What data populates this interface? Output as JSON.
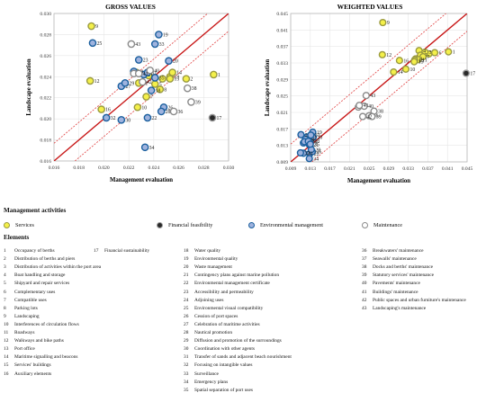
{
  "chart_data": [
    {
      "type": "scatter",
      "title": "GROSS VALUES",
      "xlabel": "Management evaluation",
      "ylabel": "Landscape evaluation",
      "xlim": [
        0.016,
        0.03
      ],
      "ylim": [
        0.016,
        0.03
      ],
      "xticks": [
        "0.016",
        "0.018",
        "0.020",
        "0.022",
        "0.024",
        "0.026",
        "0.028",
        "0.030"
      ],
      "yticks": [
        "0.016",
        "0.018",
        "0.020",
        "0.022",
        "0.024",
        "0.026",
        "0.028",
        "0.030"
      ],
      "grid": true,
      "reference_lines": [
        "y = x",
        "upper confidence band",
        "lower confidence band"
      ],
      "points": [
        {
          "id": "1",
          "x": 0.0288,
          "y": 0.0242,
          "cat": "services"
        },
        {
          "id": "2",
          "x": 0.0266,
          "y": 0.0238,
          "cat": "services"
        },
        {
          "id": "3",
          "x": 0.0247,
          "y": 0.0238,
          "cat": "services"
        },
        {
          "id": "4",
          "x": 0.0226,
          "y": 0.0244,
          "cat": "services"
        },
        {
          "id": "5",
          "x": 0.0241,
          "y": 0.0233,
          "cat": "services"
        },
        {
          "id": "6",
          "x": 0.0236,
          "y": 0.0241,
          "cat": "services"
        },
        {
          "id": "7",
          "x": 0.0234,
          "y": 0.0221,
          "cat": "services"
        },
        {
          "id": "8",
          "x": 0.0245,
          "y": 0.0228,
          "cat": "services"
        },
        {
          "id": "9",
          "x": 0.019,
          "y": 0.0288,
          "cat": "services"
        },
        {
          "id": "10",
          "x": 0.0227,
          "y": 0.0211,
          "cat": "services"
        },
        {
          "id": "11",
          "x": 0.0228,
          "y": 0.0234,
          "cat": "services"
        },
        {
          "id": "12",
          "x": 0.0189,
          "y": 0.0236,
          "cat": "services"
        },
        {
          "id": "13",
          "x": 0.0253,
          "y": 0.024,
          "cat": "services"
        },
        {
          "id": "14",
          "x": 0.0255,
          "y": 0.0244,
          "cat": "services"
        },
        {
          "id": "15",
          "x": 0.0253,
          "y": 0.0238,
          "cat": "services"
        },
        {
          "id": "16",
          "x": 0.0198,
          "y": 0.0209,
          "cat": "services"
        },
        {
          "id": "17",
          "x": 0.0287,
          "y": 0.0201,
          "cat": "financial-feasibility"
        },
        {
          "id": "18",
          "x": 0.0238,
          "y": 0.0227,
          "cat": "environmental"
        },
        {
          "id": "19",
          "x": 0.0244,
          "y": 0.028,
          "cat": "environmental"
        },
        {
          "id": "20",
          "x": 0.0252,
          "y": 0.0255,
          "cat": "environmental"
        },
        {
          "id": "21",
          "x": 0.0232,
          "y": 0.0242,
          "cat": "environmental"
        },
        {
          "id": "22",
          "x": 0.0235,
          "y": 0.0201,
          "cat": "environmental"
        },
        {
          "id": "23",
          "x": 0.0228,
          "y": 0.0256,
          "cat": "environmental"
        },
        {
          "id": "24",
          "x": 0.0224,
          "y": 0.0245,
          "cat": "environmental"
        },
        {
          "id": "25",
          "x": 0.0191,
          "y": 0.0272,
          "cat": "environmental"
        },
        {
          "id": "26",
          "x": 0.0248,
          "y": 0.0211,
          "cat": "environmental"
        },
        {
          "id": "27",
          "x": 0.0214,
          "y": 0.0231,
          "cat": "environmental"
        },
        {
          "id": "28",
          "x": 0.0246,
          "y": 0.0207,
          "cat": "environmental"
        },
        {
          "id": "29",
          "x": 0.0217,
          "y": 0.0234,
          "cat": "environmental"
        },
        {
          "id": "30",
          "x": 0.0214,
          "y": 0.0199,
          "cat": "environmental"
        },
        {
          "id": "31",
          "x": 0.0235,
          "y": 0.0244,
          "cat": "environmental"
        },
        {
          "id": "32",
          "x": 0.0202,
          "y": 0.0201,
          "cat": "environmental"
        },
        {
          "id": "33",
          "x": 0.0241,
          "y": 0.0271,
          "cat": "environmental"
        },
        {
          "id": "34",
          "x": 0.0233,
          "y": 0.0173,
          "cat": "environmental"
        },
        {
          "id": "35",
          "x": 0.0241,
          "y": 0.0239,
          "cat": "environmental"
        },
        {
          "id": "36",
          "x": 0.0256,
          "y": 0.0207,
          "cat": "maintenance"
        },
        {
          "id": "37",
          "x": 0.0224,
          "y": 0.0243,
          "cat": "maintenance"
        },
        {
          "id": "38",
          "x": 0.0267,
          "y": 0.0229,
          "cat": "maintenance"
        },
        {
          "id": "39",
          "x": 0.027,
          "y": 0.0216,
          "cat": "maintenance"
        },
        {
          "id": "40",
          "x": 0.0237,
          "y": 0.0246,
          "cat": "maintenance"
        },
        {
          "id": "41",
          "x": 0.0228,
          "y": 0.0243,
          "cat": "maintenance"
        },
        {
          "id": "42",
          "x": 0.0231,
          "y": 0.0235,
          "cat": "maintenance"
        },
        {
          "id": "43",
          "x": 0.0222,
          "y": 0.0271,
          "cat": "maintenance"
        }
      ]
    },
    {
      "type": "scatter",
      "title": "WEIGHTED VALUES",
      "xlabel": "Management evaluation",
      "ylabel": "Landscape evaluation",
      "xlim": [
        0.009,
        0.045
      ],
      "ylim": [
        0.009,
        0.045
      ],
      "xticks": [
        "0.009",
        "0.013",
        "0.017",
        "0.021",
        "0.025",
        "0.029",
        "0.033",
        "0.037",
        "0.041",
        "0.045"
      ],
      "yticks": [
        "0.009",
        "0.013",
        "0.017",
        "0.021",
        "0.025",
        "0.029",
        "0.033",
        "0.037",
        "0.041",
        "0.045"
      ],
      "grid": true,
      "reference_lines": [
        "y = x",
        "upper confidence band",
        "lower confidence band"
      ],
      "points": [
        {
          "id": "1",
          "x": 0.0412,
          "y": 0.0357,
          "cat": "services"
        },
        {
          "id": "2",
          "x": 0.0372,
          "y": 0.0352,
          "cat": "services"
        },
        {
          "id": "3",
          "x": 0.0364,
          "y": 0.0356,
          "cat": "services"
        },
        {
          "id": "4",
          "x": 0.0352,
          "y": 0.036,
          "cat": "services"
        },
        {
          "id": "5",
          "x": 0.0355,
          "y": 0.0349,
          "cat": "services"
        },
        {
          "id": "6",
          "x": 0.0384,
          "y": 0.0355,
          "cat": "services"
        },
        {
          "id": "7",
          "x": 0.036,
          "y": 0.0345,
          "cat": "services"
        },
        {
          "id": "8",
          "x": 0.0345,
          "y": 0.034,
          "cat": "services"
        },
        {
          "id": "9",
          "x": 0.0278,
          "y": 0.0428,
          "cat": "services"
        },
        {
          "id": "10",
          "x": 0.0325,
          "y": 0.0315,
          "cat": "services"
        },
        {
          "id": "11",
          "x": 0.035,
          "y": 0.0338,
          "cat": "services"
        },
        {
          "id": "12",
          "x": 0.0277,
          "y": 0.035,
          "cat": "services"
        },
        {
          "id": "13",
          "x": 0.0343,
          "y": 0.0337,
          "cat": "services"
        },
        {
          "id": "14",
          "x": 0.03,
          "y": 0.0308,
          "cat": "services"
        },
        {
          "id": "15",
          "x": 0.0342,
          "y": 0.0333,
          "cat": "services"
        },
        {
          "id": "16",
          "x": 0.0312,
          "y": 0.0336,
          "cat": "services"
        },
        {
          "id": "17",
          "x": 0.0448,
          "y": 0.0305,
          "cat": "financial-feasibility"
        },
        {
          "id": "18",
          "x": 0.013,
          "y": 0.0141,
          "cat": "environmental"
        },
        {
          "id": "19",
          "x": 0.0135,
          "y": 0.0162,
          "cat": "environmental"
        },
        {
          "id": "20",
          "x": 0.0136,
          "y": 0.015,
          "cat": "environmental"
        },
        {
          "id": "21",
          "x": 0.0128,
          "y": 0.0132,
          "cat": "environmental"
        },
        {
          "id": "22",
          "x": 0.0129,
          "y": 0.011,
          "cat": "environmental"
        },
        {
          "id": "23",
          "x": 0.0123,
          "y": 0.015,
          "cat": "environmental"
        },
        {
          "id": "24",
          "x": 0.012,
          "y": 0.0145,
          "cat": "environmental"
        },
        {
          "id": "25",
          "x": 0.0111,
          "y": 0.0156,
          "cat": "environmental"
        },
        {
          "id": "26",
          "x": 0.0134,
          "y": 0.0115,
          "cat": "environmental"
        },
        {
          "id": "27",
          "x": 0.0116,
          "y": 0.0136,
          "cat": "environmental"
        },
        {
          "id": "28",
          "x": 0.0132,
          "y": 0.012,
          "cat": "environmental"
        },
        {
          "id": "29",
          "x": 0.0118,
          "y": 0.0139,
          "cat": "environmental"
        },
        {
          "id": "30",
          "x": 0.0116,
          "y": 0.0111,
          "cat": "environmental"
        },
        {
          "id": "31",
          "x": 0.0126,
          "y": 0.014,
          "cat": "environmental"
        },
        {
          "id": "32",
          "x": 0.011,
          "y": 0.0112,
          "cat": "environmental"
        },
        {
          "id": "33",
          "x": 0.0131,
          "y": 0.0155,
          "cat": "environmental"
        },
        {
          "id": "34",
          "x": 0.0128,
          "y": 0.0098,
          "cat": "environmental"
        },
        {
          "id": "35",
          "x": 0.013,
          "y": 0.0133,
          "cat": "environmental"
        },
        {
          "id": "36",
          "x": 0.025,
          "y": 0.0202,
          "cat": "maintenance"
        },
        {
          "id": "37",
          "x": 0.0228,
          "y": 0.0223,
          "cat": "maintenance"
        },
        {
          "id": "38",
          "x": 0.026,
          "y": 0.0213,
          "cat": "maintenance"
        },
        {
          "id": "39",
          "x": 0.0256,
          "y": 0.02,
          "cat": "maintenance"
        },
        {
          "id": "40",
          "x": 0.024,
          "y": 0.0225,
          "cat": "maintenance"
        },
        {
          "id": "41",
          "x": 0.023,
          "y": 0.0227,
          "cat": "maintenance"
        },
        {
          "id": "42",
          "x": 0.0237,
          "y": 0.02,
          "cat": "maintenance"
        },
        {
          "id": "43",
          "x": 0.0244,
          "y": 0.0251,
          "cat": "maintenance"
        }
      ]
    }
  ],
  "colors": {
    "services_fill": "#f4f04a",
    "services_stroke": "#9a9a40",
    "financial_fill": "#2a2a2a",
    "financial_stroke": "#999999",
    "environmental_fill": "#9fb3de",
    "environmental_stroke": "#1a5f9e",
    "maintenance_fill": "#ffffff",
    "maintenance_stroke": "#8a8a8a",
    "diagonal": "#c81818",
    "band": "#e04040",
    "grid": "#e6e6e6"
  },
  "legend": {
    "activities_heading": "Management activities",
    "categories": [
      {
        "key": "services",
        "label": "Services",
        "icon": "yellow-circle"
      },
      {
        "key": "financial-feasibility",
        "label": "Financial feasibility",
        "icon": "dark-circle"
      },
      {
        "key": "environmental",
        "label": "Environmental management",
        "icon": "blue-circle"
      },
      {
        "key": "maintenance",
        "label": "Maintenance",
        "icon": "white-circle"
      }
    ],
    "elements_heading": "Elements",
    "elements": [
      {
        "n": "1",
        "label": "Occupancy of berths"
      },
      {
        "n": "2",
        "label": "Distribution of berths and piers"
      },
      {
        "n": "3",
        "label": "Distribution of activities within the port area"
      },
      {
        "n": "4",
        "label": "Boat handling and storage"
      },
      {
        "n": "5",
        "label": "Shipyard and repair services"
      },
      {
        "n": "6",
        "label": "Complementary uses"
      },
      {
        "n": "7",
        "label": "Compatible uses"
      },
      {
        "n": "8",
        "label": "Parking lots"
      },
      {
        "n": "9",
        "label": "Landscaping"
      },
      {
        "n": "10",
        "label": "Interferences of circulation flows"
      },
      {
        "n": "11",
        "label": "Roadways"
      },
      {
        "n": "12",
        "label": "Walkways and bike paths"
      },
      {
        "n": "13",
        "label": "Port office"
      },
      {
        "n": "14",
        "label": "Maritime signalling and beacons"
      },
      {
        "n": "15",
        "label": "Services' buildings"
      },
      {
        "n": "16",
        "label": "Auxiliary elements"
      },
      {
        "n": "17",
        "label": "Financial sustainability"
      },
      {
        "n": "18",
        "label": "Water quality"
      },
      {
        "n": "19",
        "label": "Environmental quality"
      },
      {
        "n": "20",
        "label": "Waste management"
      },
      {
        "n": "21",
        "label": "Contingency plans against marine pollution"
      },
      {
        "n": "22",
        "label": "Environmental management certificate"
      },
      {
        "n": "23",
        "label": "Accessibility and permeability"
      },
      {
        "n": "24",
        "label": "Adjoining uses"
      },
      {
        "n": "25",
        "label": "Environmental visual compatibility"
      },
      {
        "n": "26",
        "label": "Cession of port spaces"
      },
      {
        "n": "27",
        "label": "Celebration of maritime activities"
      },
      {
        "n": "28",
        "label": "Nautical promotion"
      },
      {
        "n": "29",
        "label": "Diffusion and promotion of the surroundings"
      },
      {
        "n": "30",
        "label": "Coordination with other agents"
      },
      {
        "n": "31",
        "label": "Transfer of sands and adjacent beach nourishment"
      },
      {
        "n": "32",
        "label": "Focusing on intangible values"
      },
      {
        "n": "33",
        "label": "Surveillance"
      },
      {
        "n": "34",
        "label": "Emergency plans"
      },
      {
        "n": "35",
        "label": "Spatial separation of port uses"
      },
      {
        "n": "36",
        "label": "Breakwaters' maintenance"
      },
      {
        "n": "37",
        "label": "Seawalls' maintenance"
      },
      {
        "n": "38",
        "label": "Docks and berths' maintenance"
      },
      {
        "n": "39",
        "label": "Statutory services' maintenance"
      },
      {
        "n": "40",
        "label": "Pavements' maintenance"
      },
      {
        "n": "41",
        "label": "Buildings' maintenance"
      },
      {
        "n": "42",
        "label": "Public spaces and urban furniture's maintenance"
      },
      {
        "n": "43",
        "label": "Landscaping's maintenance"
      }
    ]
  }
}
